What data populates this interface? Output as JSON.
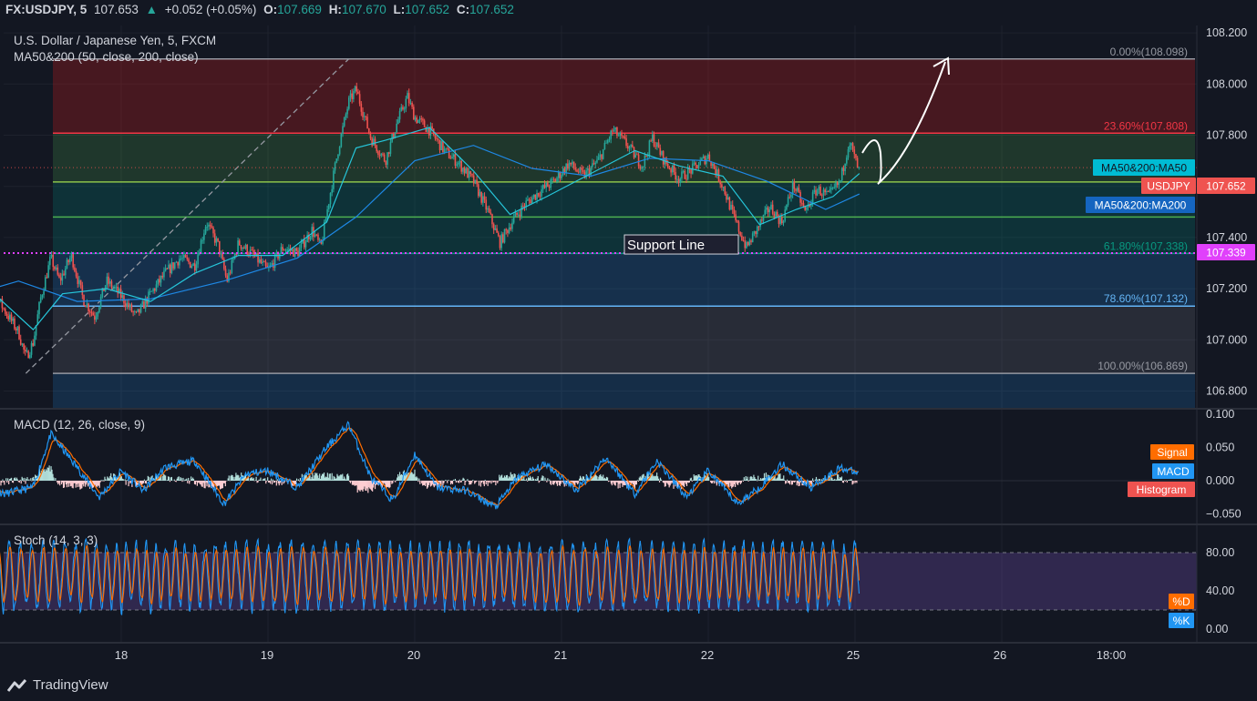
{
  "header": {
    "symbol": "FX:USDJPY, 5",
    "last": "107.653",
    "change_icon": "triangle-up-icon",
    "change": "+0.052 (+0.05%)",
    "o_label": "O:",
    "o": "107.669",
    "h_label": "H:",
    "h": "107.670",
    "l_label": "L:",
    "l": "107.652",
    "c_label": "C:",
    "c": "107.652"
  },
  "main_legend": {
    "title": "U.S. Dollar / Japanese Yen, 5, FXCM",
    "indicator": "MA50&200 (50, close, 200, close)"
  },
  "macd_legend": "MACD (12, 26, close, 9)",
  "stoch_legend": "Stoch (14, 3, 3)",
  "annotation": {
    "support_label": "Support Line"
  },
  "price_axis": {
    "ticks": [
      "108.200",
      "108.000",
      "107.800",
      "107.400",
      "107.200",
      "107.000",
      "106.800"
    ],
    "badges": {
      "ma50": "MA50&200:MA50",
      "symbol": "USDJPY",
      "price": "107.652",
      "support_price": "107.339",
      "ma200": "MA50&200:MA200"
    }
  },
  "macd_axis": {
    "ticks": [
      "0.100",
      "0.050",
      "0.000",
      "−0.050"
    ],
    "badges": {
      "signal": "Signal",
      "macd": "MACD",
      "histogram": "Histogram"
    }
  },
  "stoch_axis": {
    "ticks": [
      "80.00",
      "40.00",
      "0.00"
    ],
    "badges": {
      "d": "%D",
      "k": "%K"
    }
  },
  "time_axis": {
    "labels": [
      "18",
      "19",
      "20",
      "21",
      "22",
      "25",
      "26",
      "18:00"
    ]
  },
  "fib_labels": {
    "l0": "0.00%(108.098)",
    "l236": "23.60%(107.808)",
    "l618": "61.80%(107.338)",
    "l786": "78.60%(107.132)",
    "l100": "100.00%(106.869)"
  },
  "brand": {
    "name": "TradingView",
    "icon": "tradingview-logo-icon"
  },
  "colors": {
    "background": "#131722",
    "up": "#26a69a",
    "down": "#ef5350",
    "ma50": "#26c6da",
    "ma200": "#1e88e5",
    "support": "#e040fb",
    "macd": "#2196f3",
    "signal": "#ff6d00",
    "stoch_k": "#2196f3",
    "stoch_d": "#ff6d00"
  },
  "chart_data": {
    "type": "candlestick",
    "title": "U.S. Dollar / Japanese Yen, 5, FXCM",
    "interval": "5 min",
    "x_labels": [
      "18",
      "19",
      "20",
      "21",
      "22",
      "25",
      "26",
      "18:00"
    ],
    "ylim": [
      106.76,
      108.23
    ],
    "close_path": [
      {
        "t": 17.0,
        "p": 107.27
      },
      {
        "t": 17.1,
        "p": 107.22
      },
      {
        "t": 17.2,
        "p": 107.12
      },
      {
        "t": 17.3,
        "p": 107.03
      },
      {
        "t": 17.35,
        "p": 106.93
      },
      {
        "t": 17.4,
        "p": 106.99
      },
      {
        "t": 17.45,
        "p": 107.16
      },
      {
        "t": 17.52,
        "p": 107.32
      },
      {
        "t": 17.58,
        "p": 107.23
      },
      {
        "t": 17.66,
        "p": 107.33
      },
      {
        "t": 17.74,
        "p": 107.16
      },
      {
        "t": 17.82,
        "p": 107.09
      },
      {
        "t": 17.9,
        "p": 107.23
      },
      {
        "t": 18.0,
        "p": 107.17
      },
      {
        "t": 18.1,
        "p": 107.09
      },
      {
        "t": 18.2,
        "p": 107.18
      },
      {
        "t": 18.3,
        "p": 107.26
      },
      {
        "t": 18.4,
        "p": 107.32
      },
      {
        "t": 18.5,
        "p": 107.29
      },
      {
        "t": 18.58,
        "p": 107.46
      },
      {
        "t": 18.66,
        "p": 107.37
      },
      {
        "t": 18.72,
        "p": 107.23
      },
      {
        "t": 18.8,
        "p": 107.38
      },
      {
        "t": 18.9,
        "p": 107.33
      },
      {
        "t": 19.0,
        "p": 107.27
      },
      {
        "t": 19.1,
        "p": 107.36
      },
      {
        "t": 19.2,
        "p": 107.34
      },
      {
        "t": 19.3,
        "p": 107.43
      },
      {
        "t": 19.36,
        "p": 107.36
      },
      {
        "t": 19.42,
        "p": 107.56
      },
      {
        "t": 19.48,
        "p": 107.75
      },
      {
        "t": 19.55,
        "p": 107.93
      },
      {
        "t": 19.6,
        "p": 107.98
      },
      {
        "t": 19.7,
        "p": 107.79
      },
      {
        "t": 19.8,
        "p": 107.7
      },
      {
        "t": 19.88,
        "p": 107.85
      },
      {
        "t": 19.95,
        "p": 107.95
      },
      {
        "t": 20.0,
        "p": 107.87
      },
      {
        "t": 20.1,
        "p": 107.82
      },
      {
        "t": 20.2,
        "p": 107.74
      },
      {
        "t": 20.3,
        "p": 107.69
      },
      {
        "t": 20.4,
        "p": 107.62
      },
      {
        "t": 20.5,
        "p": 107.5
      },
      {
        "t": 20.58,
        "p": 107.38
      },
      {
        "t": 20.66,
        "p": 107.46
      },
      {
        "t": 20.75,
        "p": 107.53
      },
      {
        "t": 20.85,
        "p": 107.58
      },
      {
        "t": 20.95,
        "p": 107.62
      },
      {
        "t": 21.05,
        "p": 107.69
      },
      {
        "t": 21.15,
        "p": 107.64
      },
      {
        "t": 21.25,
        "p": 107.7
      },
      {
        "t": 21.35,
        "p": 107.82
      },
      {
        "t": 21.45,
        "p": 107.76
      },
      {
        "t": 21.55,
        "p": 107.68
      },
      {
        "t": 21.62,
        "p": 107.79
      },
      {
        "t": 21.7,
        "p": 107.7
      },
      {
        "t": 21.8,
        "p": 107.63
      },
      {
        "t": 21.9,
        "p": 107.67
      },
      {
        "t": 22.0,
        "p": 107.72
      },
      {
        "t": 22.1,
        "p": 107.6
      },
      {
        "t": 22.18,
        "p": 107.47
      },
      {
        "t": 22.26,
        "p": 107.36
      },
      {
        "t": 22.34,
        "p": 107.44
      },
      {
        "t": 22.42,
        "p": 107.52
      },
      {
        "t": 22.5,
        "p": 107.46
      },
      {
        "t": 22.58,
        "p": 107.61
      },
      {
        "t": 22.66,
        "p": 107.5
      },
      {
        "t": 22.74,
        "p": 107.59
      },
      {
        "t": 22.82,
        "p": 107.56
      },
      {
        "t": 22.9,
        "p": 107.62
      },
      {
        "t": 22.96,
        "p": 107.78
      },
      {
        "t": 23.03,
        "p": 107.652
      }
    ],
    "ma50_path": [
      {
        "t": 17.0,
        "p": 107.25
      },
      {
        "t": 17.4,
        "p": 107.04
      },
      {
        "t": 17.6,
        "p": 107.18
      },
      {
        "t": 17.9,
        "p": 107.2
      },
      {
        "t": 18.2,
        "p": 107.15
      },
      {
        "t": 18.5,
        "p": 107.26
      },
      {
        "t": 18.8,
        "p": 107.33
      },
      {
        "t": 19.1,
        "p": 107.33
      },
      {
        "t": 19.4,
        "p": 107.46
      },
      {
        "t": 19.6,
        "p": 107.75
      },
      {
        "t": 19.8,
        "p": 107.78
      },
      {
        "t": 20.1,
        "p": 107.83
      },
      {
        "t": 20.4,
        "p": 107.66
      },
      {
        "t": 20.65,
        "p": 107.49
      },
      {
        "t": 20.9,
        "p": 107.56
      },
      {
        "t": 21.2,
        "p": 107.65
      },
      {
        "t": 21.5,
        "p": 107.74
      },
      {
        "t": 21.8,
        "p": 107.68
      },
      {
        "t": 22.1,
        "p": 107.64
      },
      {
        "t": 22.35,
        "p": 107.45
      },
      {
        "t": 22.6,
        "p": 107.51
      },
      {
        "t": 22.85,
        "p": 107.56
      },
      {
        "t": 23.03,
        "p": 107.65
      }
    ],
    "ma200_path": [
      {
        "t": 17.0,
        "p": 107.18
      },
      {
        "t": 17.3,
        "p": 107.23
      },
      {
        "t": 17.7,
        "p": 107.15
      },
      {
        "t": 18.2,
        "p": 107.16
      },
      {
        "t": 18.7,
        "p": 107.23
      },
      {
        "t": 19.2,
        "p": 107.32
      },
      {
        "t": 19.6,
        "p": 107.48
      },
      {
        "t": 20.0,
        "p": 107.7
      },
      {
        "t": 20.4,
        "p": 107.76
      },
      {
        "t": 20.8,
        "p": 107.67
      },
      {
        "t": 21.2,
        "p": 107.64
      },
      {
        "t": 21.6,
        "p": 107.71
      },
      {
        "t": 22.0,
        "p": 107.7
      },
      {
        "t": 22.4,
        "p": 107.62
      },
      {
        "t": 22.8,
        "p": 107.51
      },
      {
        "t": 23.03,
        "p": 107.57
      }
    ],
    "fibonacci": [
      {
        "label": "0.00%(108.098)",
        "value": 108.098
      },
      {
        "label": "23.60%(107.808)",
        "value": 107.808
      },
      {
        "value": 107.617
      },
      {
        "value": 107.48
      },
      {
        "label": "61.80%(107.338)",
        "value": 107.338
      },
      {
        "label": "78.60%(107.132)",
        "value": 107.132
      },
      {
        "label": "100.00%(106.869)",
        "value": 106.869
      }
    ],
    "support_line": 107.339,
    "current_price": 107.652,
    "macd": {
      "ylim": [
        -0.065,
        0.105
      ],
      "ticks": [
        0.1,
        0.05,
        0.0,
        -0.05
      ],
      "path": [
        {
          "t": 17.0,
          "m": 0.002
        },
        {
          "t": 17.2,
          "m": -0.02
        },
        {
          "t": 17.4,
          "m": -0.01
        },
        {
          "t": 17.52,
          "m": 0.07
        },
        {
          "t": 17.7,
          "m": 0.02
        },
        {
          "t": 17.85,
          "m": -0.025
        },
        {
          "t": 18.0,
          "m": 0.015
        },
        {
          "t": 18.15,
          "m": -0.015
        },
        {
          "t": 18.3,
          "m": 0.02
        },
        {
          "t": 18.5,
          "m": 0.03
        },
        {
          "t": 18.7,
          "m": -0.035
        },
        {
          "t": 18.85,
          "m": 0.01
        },
        {
          "t": 19.0,
          "m": 0.015
        },
        {
          "t": 19.2,
          "m": -0.01
        },
        {
          "t": 19.4,
          "m": 0.05
        },
        {
          "t": 19.55,
          "m": 0.085
        },
        {
          "t": 19.7,
          "m": 0.005
        },
        {
          "t": 19.85,
          "m": -0.03
        },
        {
          "t": 20.0,
          "m": 0.04
        },
        {
          "t": 20.15,
          "m": -0.01
        },
        {
          "t": 20.35,
          "m": -0.015
        },
        {
          "t": 20.55,
          "m": -0.04
        },
        {
          "t": 20.7,
          "m": 0.005
        },
        {
          "t": 20.9,
          "m": 0.025
        },
        {
          "t": 21.1,
          "m": -0.015
        },
        {
          "t": 21.3,
          "m": 0.035
        },
        {
          "t": 21.5,
          "m": -0.02
        },
        {
          "t": 21.65,
          "m": 0.03
        },
        {
          "t": 21.85,
          "m": -0.025
        },
        {
          "t": 22.0,
          "m": 0.015
        },
        {
          "t": 22.2,
          "m": -0.035
        },
        {
          "t": 22.35,
          "m": -0.01
        },
        {
          "t": 22.5,
          "m": 0.025
        },
        {
          "t": 22.7,
          "m": -0.01
        },
        {
          "t": 22.9,
          "m": 0.02
        },
        {
          "t": 23.03,
          "m": 0.01
        }
      ]
    },
    "stochastic": {
      "ylim": [
        -5,
        100
      ],
      "ticks": [
        80,
        40,
        0
      ],
      "bands": [
        20,
        80
      ],
      "range": [
        20,
        95
      ],
      "oscillations_per_day": 14
    },
    "projection": "upward arrow toward 108.098"
  }
}
